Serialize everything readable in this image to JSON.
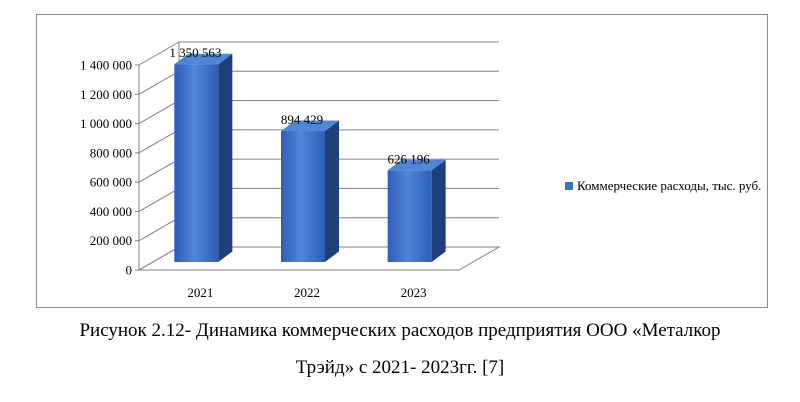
{
  "chart_data": {
    "type": "bar",
    "categories": [
      "2021",
      "2022",
      "2023"
    ],
    "series": [
      {
        "name": "Коммерческие расходы, тыс. руб.",
        "values": [
          1350563,
          894429,
          626196
        ]
      }
    ],
    "data_labels": [
      "1 350 563",
      "894 429",
      "626 196"
    ],
    "y_ticks": [
      0,
      200000,
      400000,
      600000,
      800000,
      1000000,
      1200000,
      1400000
    ],
    "y_tick_labels": [
      "0",
      "200 000",
      "400 000",
      "600 000",
      "800 000",
      "1 000 000",
      "1 200 000",
      "1 400 000"
    ],
    "ylim": [
      0,
      1400000
    ],
    "grid": true,
    "legend_position": "right",
    "style": "3d-column",
    "bar_color": "#3d72c4"
  },
  "legend": {
    "label": "Коммерческие расходы, тыс. руб."
  },
  "caption": {
    "line1": "Рисунок 2.12- Динамика коммерческих расходов предприятия ООО «Металкор",
    "line2": "Трэйд» с 2021- 2023гг. [7]"
  }
}
